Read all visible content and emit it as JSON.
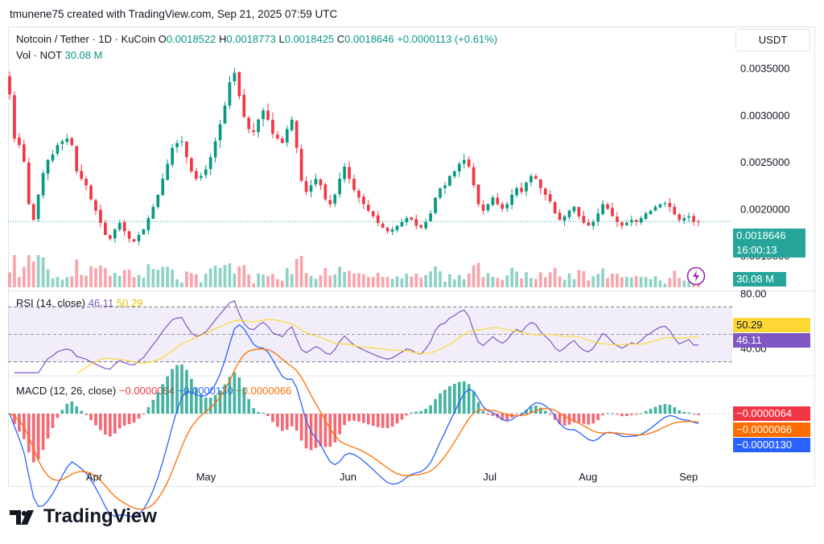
{
  "credit": "tmunene75 created with TradingView.com, Sep 21, 2025 07:59 UTC",
  "header": {
    "symbol": "Notcoin / Tether · 1D · KuCoin",
    "open_label": "O",
    "open": "0.0018522",
    "high_label": "H",
    "high": "0.0018773",
    "low_label": "L",
    "low": "0.0018425",
    "close_label": "C",
    "close": "0.0018646",
    "change": "+0.0000113 (+0.61%)"
  },
  "volume_legend": {
    "label": "Vol · NOT",
    "value": "30.08 M"
  },
  "currency_unit": "USDT",
  "price_axis": {
    "ticks": [
      "0.0035000",
      "0.0030000",
      "0.0025000",
      "0.0020000",
      "0.0015000"
    ],
    "last_price": "0.0018646",
    "countdown": "16:00:13",
    "volume_badge": "30.08 M"
  },
  "rsi": {
    "legend_label": "RSI (14, close)",
    "value": "46.11",
    "ma_value": "50.29",
    "ticks": [
      "80.00",
      "40.00"
    ],
    "band_upper": 70,
    "band_lower": 30
  },
  "macd": {
    "legend_label": "MACD (12, 26, close)",
    "hist": "−0.0000064",
    "macd": "−0.0000130",
    "signal": "−0.0000066"
  },
  "time_axis": [
    "Apr",
    "May",
    "Jun",
    "Jul",
    "Aug",
    "Sep"
  ],
  "logo_text": "TradingView",
  "colors": {
    "up": "#089981",
    "down": "#f23645",
    "rsi": "#7e57c2",
    "rsi_ma": "#fdd835",
    "macd_line": "#2962ff",
    "signal_line": "#ff6d00",
    "last_price": "#26a69a"
  },
  "chart_data": [
    {
      "type": "candlestick",
      "title": "Notcoin / Tether · 1D · KuCoin",
      "ylim": [
        0.0013,
        0.0036
      ],
      "x_months": [
        "Apr",
        "May",
        "Jun",
        "Jul",
        "Aug",
        "Sep"
      ],
      "close_series": [
        0.00322,
        0.00275,
        0.00268,
        0.0025,
        0.00205,
        0.00188,
        0.00215,
        0.00238,
        0.00252,
        0.00258,
        0.00268,
        0.00272,
        0.00275,
        0.00268,
        0.0024,
        0.00232,
        0.00225,
        0.0021,
        0.00198,
        0.00185,
        0.00172,
        0.00168,
        0.00178,
        0.00185,
        0.00176,
        0.00168,
        0.00165,
        0.00172,
        0.00178,
        0.0019,
        0.00202,
        0.00215,
        0.00232,
        0.00248,
        0.00265,
        0.0027,
        0.00272,
        0.00255,
        0.0024,
        0.00232,
        0.00235,
        0.00242,
        0.00255,
        0.00272,
        0.0029,
        0.0031,
        0.00335,
        0.00345,
        0.0032,
        0.00298,
        0.00285,
        0.00282,
        0.00295,
        0.00305,
        0.00295,
        0.0028,
        0.00275,
        0.0027,
        0.00285,
        0.00295,
        0.00265,
        0.0023,
        0.00218,
        0.00225,
        0.00232,
        0.00225,
        0.0021,
        0.00205,
        0.00215,
        0.00232,
        0.00245,
        0.00232,
        0.0022,
        0.00212,
        0.00205,
        0.00198,
        0.00192,
        0.00185,
        0.0018,
        0.00176,
        0.00178,
        0.00182,
        0.00186,
        0.0019,
        0.00188,
        0.00182,
        0.0018,
        0.00186,
        0.00195,
        0.00212,
        0.00222,
        0.00225,
        0.00235,
        0.0024,
        0.00248,
        0.00252,
        0.00245,
        0.00225,
        0.00205,
        0.00198,
        0.00205,
        0.00212,
        0.00205,
        0.002,
        0.00205,
        0.00215,
        0.00222,
        0.00218,
        0.00228,
        0.00235,
        0.00232,
        0.00222,
        0.00215,
        0.00208,
        0.00195,
        0.00188,
        0.00192,
        0.00198,
        0.00202,
        0.00192,
        0.00185,
        0.00182,
        0.00186,
        0.00195,
        0.00205,
        0.002,
        0.00192,
        0.00186,
        0.00182,
        0.00185,
        0.00188,
        0.00186,
        0.0019,
        0.00195,
        0.00198,
        0.00202,
        0.00205,
        0.00206,
        0.00202,
        0.00194,
        0.00188,
        0.0019,
        0.00192,
        0.00186,
        0.00186
      ],
      "last_close": 0.0018646
    },
    {
      "type": "bar",
      "title": "Vol · NOT",
      "last_value": "30.08 M"
    },
    {
      "type": "line",
      "title": "RSI (14, close)",
      "ylim": [
        20,
        90
      ],
      "series": [
        {
          "name": "RSI",
          "last": 46.11
        },
        {
          "name": "RSI-based MA",
          "last": 50.29
        }
      ],
      "bands": [
        70,
        30
      ]
    },
    {
      "type": "line",
      "title": "MACD (12, 26, close)",
      "series": [
        {
          "name": "Histogram",
          "last": -6.4e-06
        },
        {
          "name": "MACD",
          "last": -1.3e-05
        },
        {
          "name": "Signal",
          "last": -6.6e-06
        }
      ]
    }
  ]
}
